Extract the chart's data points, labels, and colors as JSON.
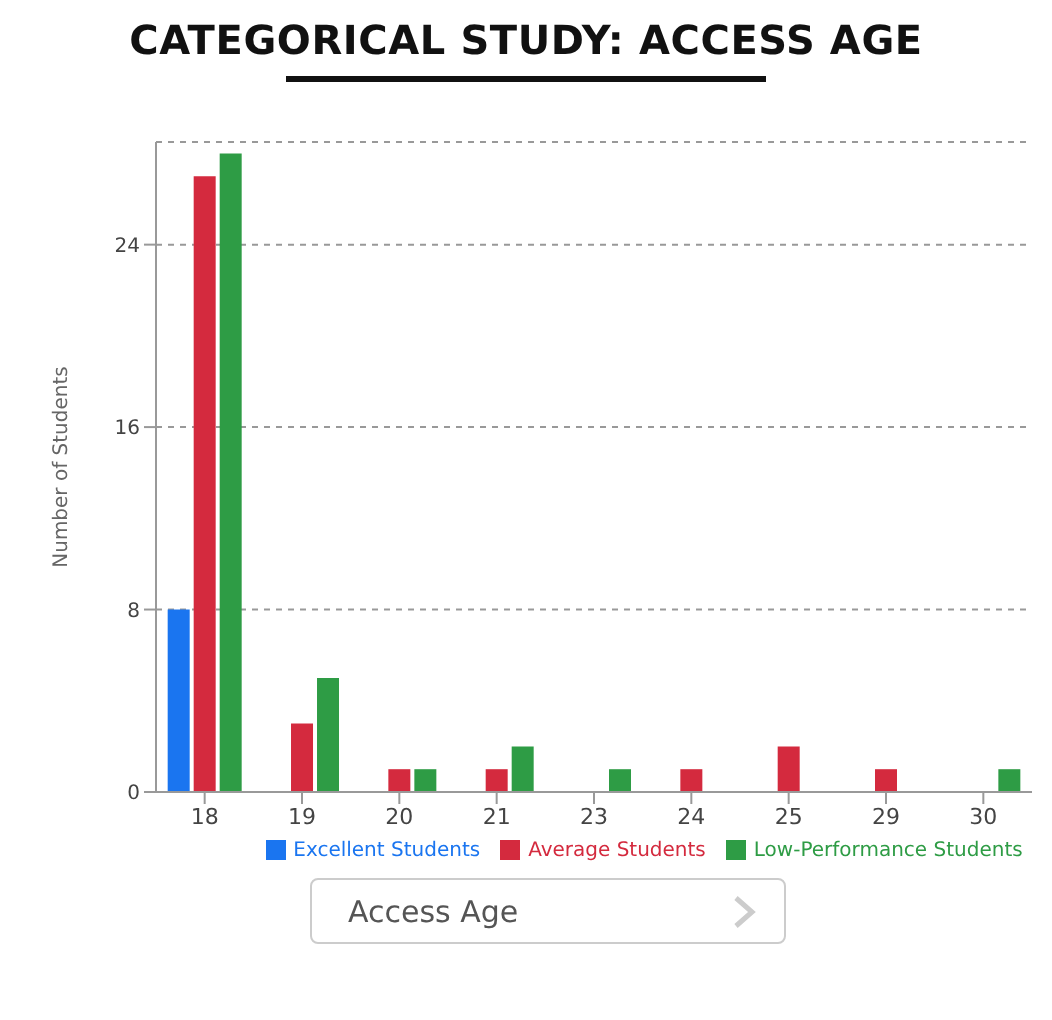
{
  "chart_data": {
    "type": "bar",
    "title": "CATEGORICAL STUDY: ACCESS AGE",
    "xlabel": "Access Age",
    "ylabel": "Number of Students",
    "categories": [
      "18",
      "19",
      "20",
      "21",
      "23",
      "24",
      "25",
      "29",
      "30"
    ],
    "series": [
      {
        "name": "Excellent Students",
        "color": "#1a75f0",
        "values": [
          8,
          0,
          0,
          0,
          0,
          0,
          0,
          0,
          0
        ]
      },
      {
        "name": "Average Students",
        "color": "#d42a3e",
        "values": [
          27,
          3,
          1,
          1,
          0,
          1,
          2,
          1,
          0
        ]
      },
      {
        "name": "Low-Performance Students",
        "color": "#2e9c45",
        "values": [
          28,
          5,
          1,
          2,
          1,
          0,
          0,
          0,
          1
        ]
      }
    ],
    "ylim": [
      0,
      28.5
    ],
    "yticks": [
      0,
      8,
      16,
      24
    ],
    "grid": "y",
    "legend": "bottom"
  }
}
